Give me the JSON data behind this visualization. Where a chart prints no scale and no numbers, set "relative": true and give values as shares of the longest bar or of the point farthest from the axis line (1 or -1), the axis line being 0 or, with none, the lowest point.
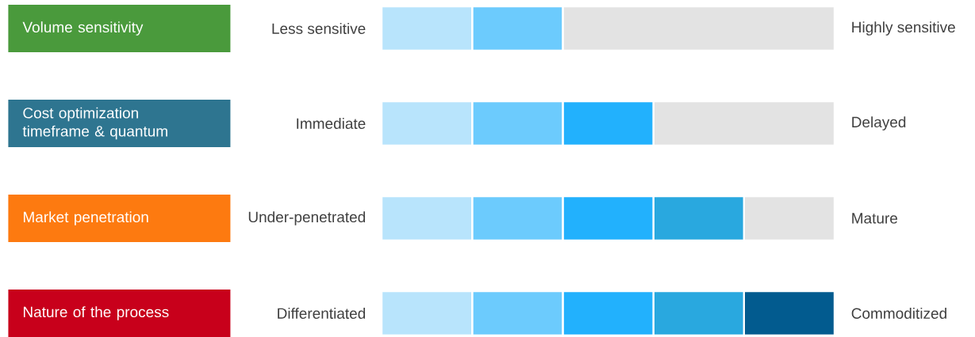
{
  "chart_data": {
    "type": "bar",
    "orientation": "horizontal",
    "stacked": true,
    "relative": true,
    "categories": [
      "Volume sensitivity",
      "Cost optimization timeframe & quantum",
      "Market penetration",
      "Nature of the process"
    ],
    "series": [
      {
        "color": "#b8e4fc",
        "values": [
          0.2,
          0.2,
          0.2,
          0.2
        ]
      },
      {
        "color": "#6ccbfd",
        "values": [
          0.2,
          0.2,
          0.2,
          0.2
        ]
      },
      {
        "color": "#22b1fd",
        "values": [
          null,
          0.2,
          0.2,
          0.2
        ]
      },
      {
        "color": "#29a8df",
        "values": [
          null,
          null,
          0.2,
          0.2
        ]
      },
      {
        "color": "#025b8f",
        "values": [
          null,
          null,
          null,
          0.2
        ]
      },
      {
        "color": "#e3e3e3",
        "values": [
          0.6,
          0.4,
          0.2,
          null
        ]
      }
    ],
    "annotations": [
      "Less sensitive",
      "Highly sensitive",
      "Immediate",
      "Delayed",
      "Under-penetrated",
      "Mature",
      "Differentiated",
      "Commoditized"
    ]
  }
}
